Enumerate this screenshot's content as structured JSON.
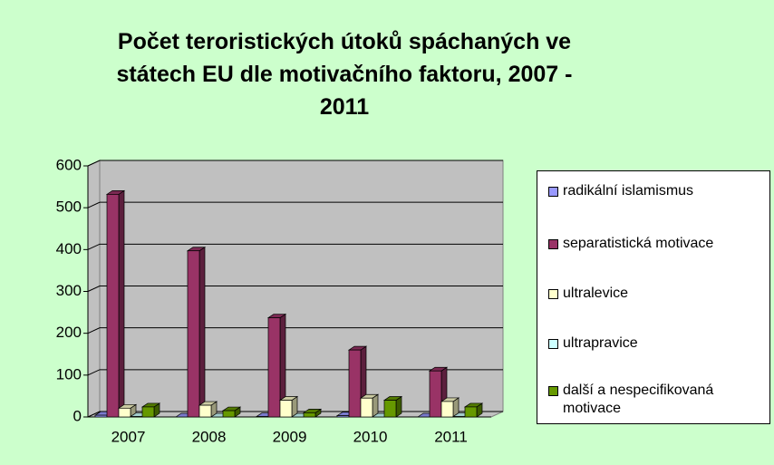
{
  "chart_data": {
    "type": "bar",
    "title": "Počet teroristických útoků spáchaných ve státech EU dle motivačního faktoru, 2007 - 2011",
    "categories": [
      "2007",
      "2008",
      "2009",
      "2010",
      "2011"
    ],
    "series": [
      {
        "name": "radikální islamismus",
        "color": "#9999ff",
        "values": [
          4,
          0,
          1,
          3,
          0
        ]
      },
      {
        "name": "separatistická motivace",
        "color": "#993366",
        "values": [
          532,
          397,
          237,
          160,
          110
        ]
      },
      {
        "name": "ultralevice",
        "color": "#ffffcc",
        "values": [
          21,
          28,
          40,
          45,
          37
        ]
      },
      {
        "name": "ultrapravice",
        "color": "#ccffff",
        "values": [
          1,
          0,
          0,
          0,
          1
        ]
      },
      {
        "name": "další a nespecifikovaná motivace",
        "color": "#669900",
        "values": [
          24,
          15,
          10,
          40,
          24
        ]
      }
    ],
    "ylim": [
      0,
      600
    ],
    "yticks": [
      0,
      100,
      200,
      300,
      400,
      500,
      600
    ],
    "grid": true,
    "legend": "right"
  }
}
